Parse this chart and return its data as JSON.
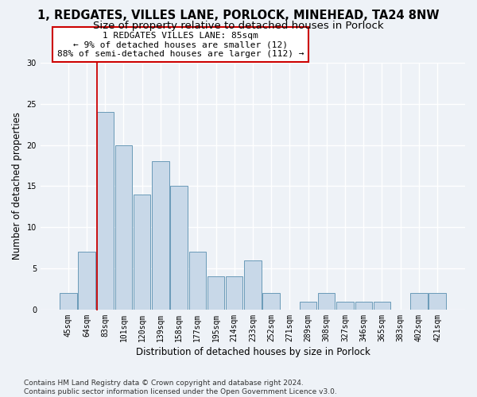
{
  "title1": "1, REDGATES, VILLES LANE, PORLOCK, MINEHEAD, TA24 8NW",
  "title2": "Size of property relative to detached houses in Porlock",
  "xlabel": "Distribution of detached houses by size in Porlock",
  "ylabel": "Number of detached properties",
  "bins": [
    "45sqm",
    "64sqm",
    "83sqm",
    "101sqm",
    "120sqm",
    "139sqm",
    "158sqm",
    "177sqm",
    "195sqm",
    "214sqm",
    "233sqm",
    "252sqm",
    "271sqm",
    "289sqm",
    "308sqm",
    "327sqm",
    "346sqm",
    "365sqm",
    "383sqm",
    "402sqm",
    "421sqm"
  ],
  "values": [
    2,
    7,
    24,
    20,
    14,
    18,
    15,
    7,
    4,
    4,
    6,
    2,
    0,
    1,
    2,
    1,
    1,
    1,
    0,
    2,
    2
  ],
  "bar_color": "#c8d8e8",
  "bar_edge_color": "#6a9ab8",
  "bar_edge_width": 0.7,
  "property_bin_index": 2,
  "red_line_color": "#cc0000",
  "annotation_line1": "1 REDGATES VILLES LANE: 85sqm",
  "annotation_line2": "← 9% of detached houses are smaller (12)",
  "annotation_line3": "88% of semi-detached houses are larger (112) →",
  "annotation_box_color": "#ffffff",
  "annotation_box_edge_color": "#cc0000",
  "ylim": [
    0,
    30
  ],
  "yticks": [
    0,
    5,
    10,
    15,
    20,
    25,
    30
  ],
  "footnote": "Contains HM Land Registry data © Crown copyright and database right 2024.\nContains public sector information licensed under the Open Government Licence v3.0.",
  "bg_color": "#eef2f7",
  "plot_bg_color": "#eef2f7",
  "grid_color": "#ffffff",
  "title1_fontsize": 10.5,
  "title2_fontsize": 9.5,
  "annotation_fontsize": 8,
  "axis_label_fontsize": 8.5,
  "ylabel_fontsize": 8.5,
  "tick_fontsize": 7,
  "footnote_fontsize": 6.5
}
